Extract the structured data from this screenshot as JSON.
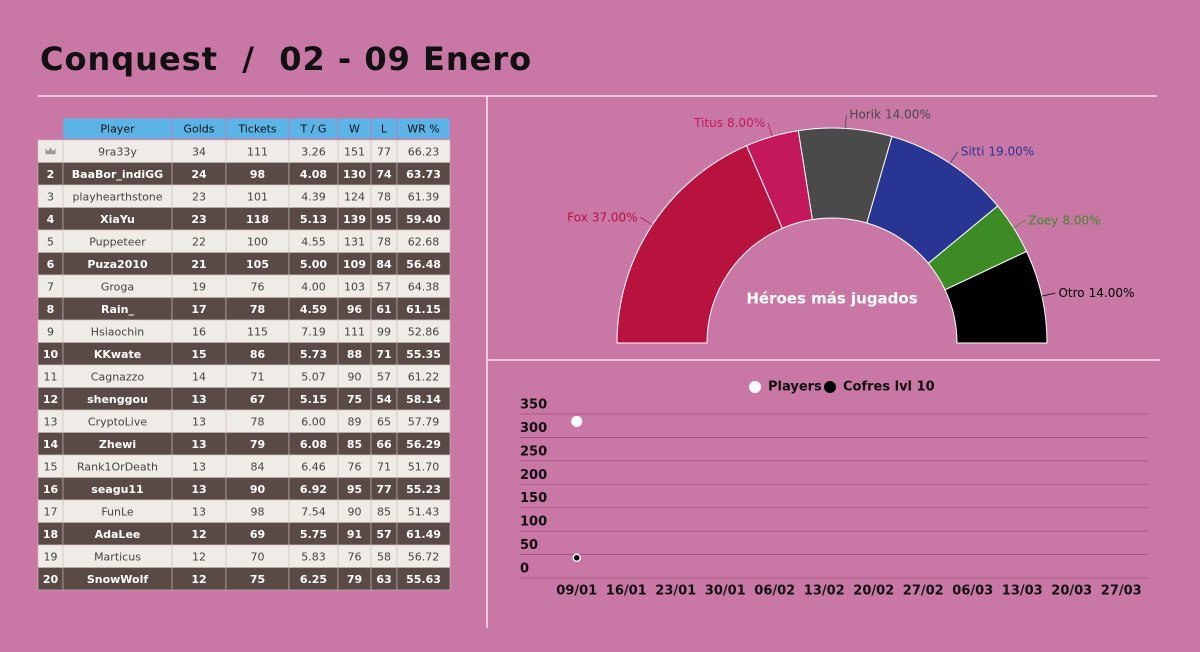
{
  "header": {
    "title": "Conquest  /  02 - 09 Enero"
  },
  "table": {
    "columns": [
      "Player",
      "Golds",
      "Tickets",
      "T / G",
      "W",
      "L",
      "WR %"
    ],
    "rows": [
      [
        null,
        "9ra33y",
        "34",
        "111",
        "3.26",
        "151",
        "77",
        "66.23"
      ],
      [
        "2",
        "BaaBor_indiGG",
        "24",
        "98",
        "4.08",
        "130",
        "74",
        "63.73"
      ],
      [
        "3",
        "playhearthstone",
        "23",
        "101",
        "4.39",
        "124",
        "78",
        "61.39"
      ],
      [
        "4",
        "XiaYu",
        "23",
        "118",
        "5.13",
        "139",
        "95",
        "59.40"
      ],
      [
        "5",
        "Puppeteer",
        "22",
        "100",
        "4.55",
        "131",
        "78",
        "62.68"
      ],
      [
        "6",
        "Puza2010",
        "21",
        "105",
        "5.00",
        "109",
        "84",
        "56.48"
      ],
      [
        "7",
        "Groga",
        "19",
        "76",
        "4.00",
        "103",
        "57",
        "64.38"
      ],
      [
        "8",
        "Rain_",
        "17",
        "78",
        "4.59",
        "96",
        "61",
        "61.15"
      ],
      [
        "9",
        "Hsiaochin",
        "16",
        "115",
        "7.19",
        "111",
        "99",
        "52.86"
      ],
      [
        "10",
        "KKwate",
        "15",
        "86",
        "5.73",
        "88",
        "71",
        "55.35"
      ],
      [
        "11",
        "Cagnazzo",
        "14",
        "71",
        "5.07",
        "90",
        "57",
        "61.22"
      ],
      [
        "12",
        "shenggou",
        "13",
        "67",
        "5.15",
        "75",
        "54",
        "58.14"
      ],
      [
        "13",
        "CryptoLive",
        "13",
        "78",
        "6.00",
        "89",
        "65",
        "57.79"
      ],
      [
        "14",
        "Zhewi",
        "13",
        "79",
        "6.08",
        "85",
        "66",
        "56.29"
      ],
      [
        "15",
        "Rank1OrDeath",
        "13",
        "84",
        "6.46",
        "76",
        "71",
        "51.70"
      ],
      [
        "16",
        "seagu11",
        "13",
        "90",
        "6.92",
        "95",
        "77",
        "55.23"
      ],
      [
        "17",
        "FunLe",
        "13",
        "98",
        "7.54",
        "90",
        "85",
        "51.43"
      ],
      [
        "18",
        "AdaLee",
        "12",
        "69",
        "5.75",
        "91",
        "57",
        "61.49"
      ],
      [
        "19",
        "Marticus",
        "12",
        "70",
        "5.83",
        "76",
        "58",
        "56.72"
      ],
      [
        "20",
        "SnowWolf",
        "12",
        "75",
        "6.25",
        "79",
        "63",
        "55.63"
      ]
    ]
  },
  "chart_data": [
    {
      "type": "pie",
      "title": "Héroes más jugados",
      "categories": [
        "Fox",
        "Titus",
        "Horik",
        "Sitti",
        "Zoey",
        "Otro"
      ],
      "values": [
        37,
        8,
        14,
        19,
        8,
        14
      ],
      "value_labels": [
        "37.00%",
        "8.00%",
        "14.00%",
        "19.00%",
        "8.00%",
        "14.00%"
      ],
      "colors": [
        "#b8123f",
        "#c4185c",
        "#4a4a4a",
        "#283593",
        "#3d8b25",
        "#000000"
      ]
    },
    {
      "type": "line",
      "x": [
        "09/01",
        "16/01",
        "23/01",
        "30/01",
        "06/02",
        "13/02",
        "20/02",
        "27/02",
        "06/03",
        "13/03",
        "20/03",
        "27/03"
      ],
      "series": [
        {
          "name": "Players",
          "color": "#ffffff",
          "values": [
            315,
            null,
            null,
            null,
            null,
            null,
            null,
            null,
            null,
            null,
            null,
            null
          ]
        },
        {
          "name": "Cofres lvl 10",
          "color": "#000000",
          "values": [
            24,
            null,
            null,
            null,
            null,
            null,
            null,
            null,
            null,
            null,
            null,
            null
          ]
        }
      ],
      "ylim": [
        0,
        350
      ],
      "yticks": [
        0,
        50,
        100,
        150,
        200,
        250,
        300,
        350
      ],
      "grid": true
    }
  ]
}
